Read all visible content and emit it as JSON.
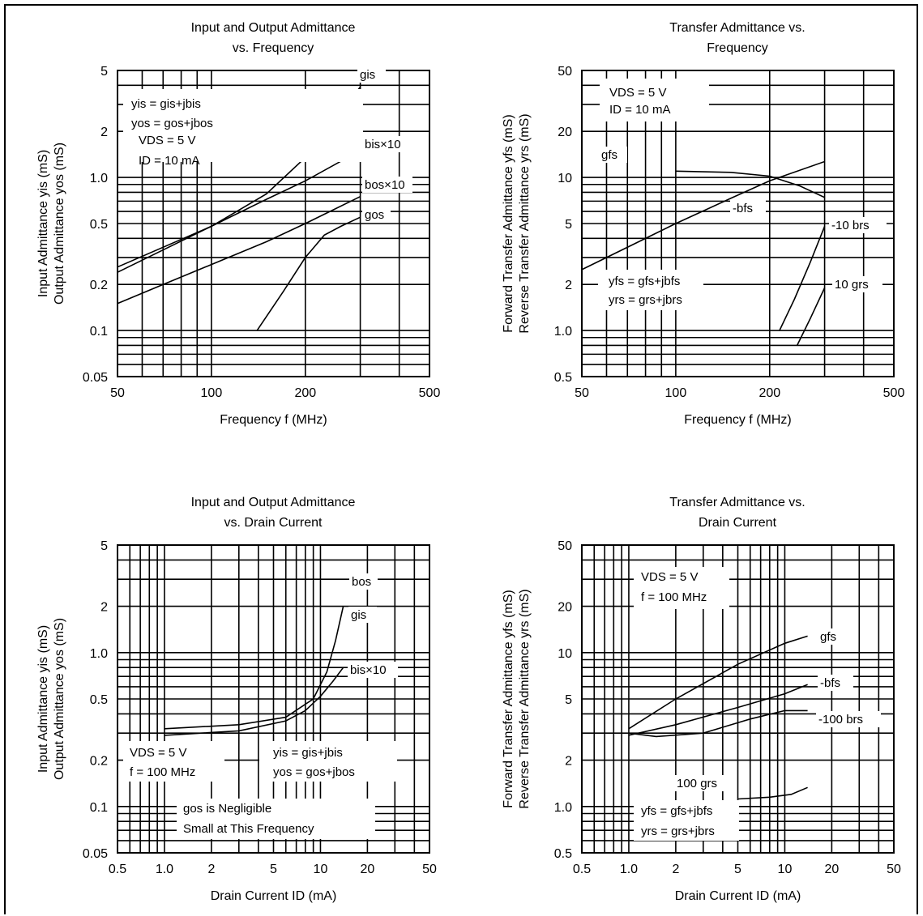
{
  "chart_data": [
    {
      "type": "line",
      "title_lines": [
        "Input and Output Admittance",
        "vs. Frequency"
      ],
      "xlabel": "Frequency f (MHz)",
      "ylabel_lines": [
        "Input Admittance  yis  (mS)",
        "Output Admittance  yos  (mS)"
      ],
      "xscale": "log",
      "yscale": "log",
      "xlim": [
        50,
        500
      ],
      "ylim": [
        0.05,
        5
      ],
      "x_ticks": [
        50,
        100,
        200,
        500
      ],
      "x_tick_labels": [
        "50",
        "100",
        "200",
        "500"
      ],
      "y_ticks": [
        0.05,
        0.1,
        0.2,
        0.5,
        1.0,
        2,
        5
      ],
      "y_tick_labels": [
        "0.05",
        "0.1",
        "0.2",
        "0.5",
        "1.0",
        "2",
        "5"
      ],
      "grid": true,
      "conditions": [
        "yis = gis+jbis",
        "yos = gos+jbos",
        "VDS = 5 V",
        "ID = 10 mA"
      ],
      "series": [
        {
          "name": "gis",
          "x": [
            50,
            100,
            150,
            200,
            300
          ],
          "y": [
            0.24,
            0.48,
            0.78,
            1.35,
            3.9
          ]
        },
        {
          "name": "bis×10",
          "x": [
            50,
            100,
            150,
            200,
            300
          ],
          "y": [
            0.26,
            0.48,
            0.72,
            0.95,
            1.5
          ]
        },
        {
          "name": "bos×10",
          "x": [
            50,
            70,
            100,
            150,
            200,
            300
          ],
          "y": [
            0.15,
            0.2,
            0.27,
            0.38,
            0.5,
            0.75
          ]
        },
        {
          "name": "gos",
          "x": [
            140,
            170,
            200,
            230,
            260,
            300
          ],
          "y": [
            0.1,
            0.18,
            0.3,
            0.42,
            0.48,
            0.55
          ]
        }
      ]
    },
    {
      "type": "line",
      "title_lines": [
        "Transfer Admittance vs.",
        "Frequency"
      ],
      "xlabel": "Frequency f (MHz)",
      "ylabel_lines": [
        "Forward Transfer Admittance  yfs  (mS)",
        "Reverse Transfer Admittance  yrs  (mS)"
      ],
      "xscale": "log",
      "yscale": "log",
      "xlim": [
        50,
        500
      ],
      "ylim": [
        0.5,
        50
      ],
      "x_ticks": [
        50,
        100,
        200,
        500
      ],
      "x_tick_labels": [
        "50",
        "100",
        "200",
        "500"
      ],
      "y_ticks": [
        0.5,
        1.0,
        2,
        5,
        10,
        20,
        50
      ],
      "y_tick_labels": [
        "0.5",
        "1.0",
        "2",
        "5",
        "10",
        "20",
        "50"
      ],
      "grid": true,
      "conditions_top": [
        "VDS = 5 V",
        "ID = 10 mA"
      ],
      "conditions_bottom": [
        "yfs = gfs+jbfs",
        "yrs = grs+jbrs"
      ],
      "series": [
        {
          "name": "gfs",
          "x": [
            100,
            150,
            200,
            250,
            300
          ],
          "y": [
            11,
            10.8,
            10.2,
            8.8,
            7.4
          ]
        },
        {
          "name": "-bfs",
          "x": [
            50,
            100,
            150,
            200,
            300
          ],
          "y": [
            2.5,
            5.0,
            7.3,
            9.5,
            12.7
          ]
        },
        {
          "name": "-10 brs",
          "x": [
            215,
            240,
            270,
            300
          ],
          "y": [
            1.0,
            1.6,
            2.8,
            4.8
          ]
        },
        {
          "name": "10 grs",
          "x": [
            245,
            270,
            300
          ],
          "y": [
            0.8,
            1.2,
            1.9
          ]
        }
      ]
    },
    {
      "type": "line",
      "title_lines": [
        "Input and Output Admittance",
        "vs. Drain Current"
      ],
      "xlabel": "Drain Current ID (mA)",
      "ylabel_lines": [
        "Input Admittance  yis  (mS)",
        "Output Admittance  yos  (mS)"
      ],
      "xscale": "log",
      "yscale": "log",
      "xlim": [
        0.5,
        50
      ],
      "ylim": [
        0.05,
        5
      ],
      "x_ticks": [
        0.5,
        1.0,
        2,
        5,
        10,
        20,
        50
      ],
      "x_tick_labels": [
        "0.5",
        "1.0",
        "2",
        "5",
        "10",
        "20",
        "50"
      ],
      "y_ticks": [
        0.05,
        0.1,
        0.2,
        0.5,
        1.0,
        2,
        5
      ],
      "y_tick_labels": [
        "0.05",
        "0.1",
        "0.2",
        "0.5",
        "1.0",
        "2",
        "5"
      ],
      "grid": true,
      "conditions": [
        "VDS = 5 V",
        "f = 100 MHz"
      ],
      "formulas": [
        "yis = gis+jbis",
        "yos = gos+jbos"
      ],
      "notes": [
        "gos is Negligible",
        "Small at This Frequency"
      ],
      "series_labels": [
        "bos",
        "gis",
        "bis×10"
      ],
      "series": [
        {
          "name": "gis",
          "x": [
            1,
            3,
            6,
            9,
            11,
            12.5,
            14
          ],
          "y": [
            0.32,
            0.34,
            0.38,
            0.5,
            0.75,
            1.2,
            2.0
          ]
        },
        {
          "name": "bis×10",
          "x": [
            1,
            3,
            6,
            8,
            10,
            12,
            14
          ],
          "y": [
            0.29,
            0.31,
            0.36,
            0.42,
            0.52,
            0.65,
            0.8
          ]
        }
      ]
    },
    {
      "type": "line",
      "title_lines": [
        "Transfer Admittance vs.",
        "Drain Current"
      ],
      "xlabel": "Drain Current ID (mA)",
      "ylabel_lines": [
        "Forward Transfer Admittance  yfs  (mS)",
        "Reverse Transfer Admittance  yrs  (mS)"
      ],
      "xscale": "log",
      "yscale": "log",
      "xlim": [
        0.5,
        50
      ],
      "ylim": [
        0.5,
        50
      ],
      "x_ticks": [
        0.5,
        1.0,
        2,
        5,
        10,
        20,
        50
      ],
      "x_tick_labels": [
        "0.5",
        "1.0",
        "2",
        "5",
        "10",
        "20",
        "50"
      ],
      "y_ticks": [
        0.5,
        1.0,
        2,
        5,
        10,
        20,
        50
      ],
      "y_tick_labels": [
        "0.5",
        "1.0",
        "2",
        "5",
        "10",
        "20",
        "50"
      ],
      "grid": true,
      "conditions_top": [
        "VDS = 5 V",
        "f = 100 MHz"
      ],
      "conditions_bottom": [
        "yfs = gfs+jbfs",
        "yrs = grs+jbrs"
      ],
      "series": [
        {
          "name": "gfs",
          "x": [
            1,
            2,
            5,
            10,
            14
          ],
          "y": [
            3.2,
            5.0,
            8.4,
            11.5,
            12.8
          ]
        },
        {
          "name": "-bfs",
          "x": [
            1,
            2,
            5,
            10,
            14
          ],
          "y": [
            2.9,
            3.4,
            4.4,
            5.4,
            6.2
          ]
        },
        {
          "name": "-100 brs",
          "x": [
            1,
            1.5,
            3,
            6,
            10,
            14
          ],
          "y": [
            3.0,
            2.85,
            3.0,
            3.7,
            4.2,
            4.2
          ]
        },
        {
          "name": "100 grs",
          "x": [
            5,
            8,
            11,
            14
          ],
          "y": [
            1.12,
            1.15,
            1.2,
            1.33
          ]
        }
      ]
    }
  ]
}
